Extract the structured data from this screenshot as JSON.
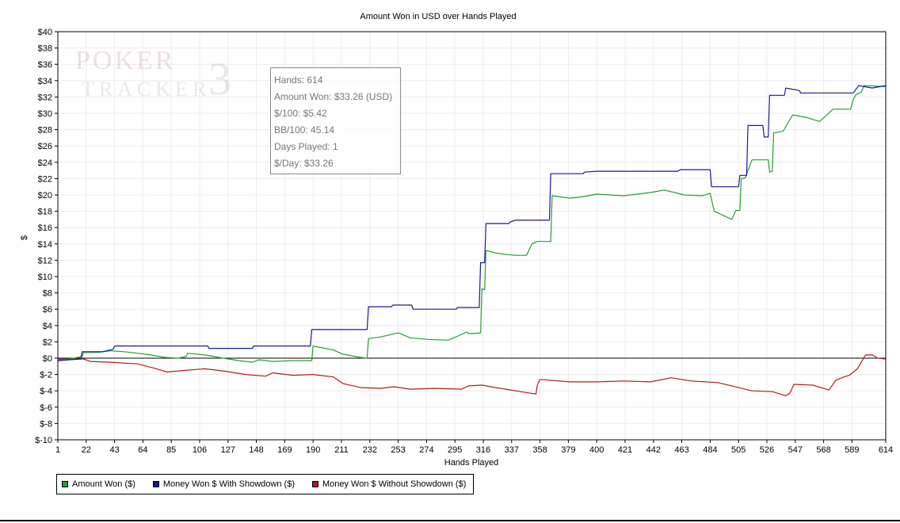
{
  "watermark": {
    "line1": "POKER",
    "line2": "TRACKER",
    "mark": "3"
  },
  "tooltip": [
    "Hands: 614",
    "Amount Won: $33.26 (USD)",
    "$/100: $5.42",
    "BB/100: 45.14",
    "Days Played: 1",
    "$/Day: $33.26"
  ],
  "chart_data": {
    "type": "line",
    "title": "Amount Won in USD over Hands Played",
    "xlabel": "Hands Played",
    "ylabel": "$",
    "xlim": [
      1,
      614
    ],
    "ylim": [
      -10,
      40
    ],
    "x_ticks": [
      1,
      22,
      43,
      64,
      85,
      106,
      127,
      148,
      169,
      190,
      211,
      232,
      253,
      274,
      295,
      316,
      337,
      358,
      379,
      400,
      421,
      442,
      463,
      484,
      505,
      526,
      547,
      568,
      589,
      614
    ],
    "y_ticks": [
      "$-10",
      "$-8",
      "$-6",
      "$-4",
      "$-2",
      "$0",
      "$2",
      "$4",
      "$6",
      "$8",
      "$10",
      "$12",
      "$14",
      "$16",
      "$18",
      "$20",
      "$22",
      "$24",
      "$26",
      "$28",
      "$30",
      "$32",
      "$34",
      "$36",
      "$38",
      "$40"
    ],
    "grid": true,
    "legend_position": "bottom-left",
    "series": [
      {
        "name": "Amount Won ($)",
        "color": "#22a032",
        "points": [
          [
            1,
            -0.2
          ],
          [
            10,
            -0.1
          ],
          [
            19,
            0.2
          ],
          [
            20,
            0.7
          ],
          [
            30,
            0.7
          ],
          [
            40,
            0.9
          ],
          [
            50,
            0.8
          ],
          [
            60,
            0.6
          ],
          [
            70,
            0.4
          ],
          [
            80,
            0.1
          ],
          [
            90,
            0.0
          ],
          [
            96,
            0.2
          ],
          [
            97,
            0.6
          ],
          [
            110,
            0.4
          ],
          [
            120,
            0.1
          ],
          [
            135,
            -0.3
          ],
          [
            145,
            -0.5
          ],
          [
            150,
            -0.2
          ],
          [
            160,
            -0.4
          ],
          [
            175,
            -0.3
          ],
          [
            189,
            -0.3
          ],
          [
            190,
            1.5
          ],
          [
            205,
            1.0
          ],
          [
            212,
            0.5
          ],
          [
            225,
            0.1
          ],
          [
            230,
            0.0
          ],
          [
            231,
            2.4
          ],
          [
            240,
            2.6
          ],
          [
            253,
            3.1
          ],
          [
            262,
            2.5
          ],
          [
            275,
            2.3
          ],
          [
            290,
            2.2
          ],
          [
            304,
            3.2
          ],
          [
            305,
            3.0
          ],
          [
            314,
            3.1
          ],
          [
            315,
            8.5
          ],
          [
            317,
            8.4
          ],
          [
            318,
            13.2
          ],
          [
            325,
            12.9
          ],
          [
            333,
            12.7
          ],
          [
            340,
            12.6
          ],
          [
            348,
            12.6
          ],
          [
            352,
            14.0
          ],
          [
            356,
            14.3
          ],
          [
            366,
            14.3
          ],
          [
            367,
            19.9
          ],
          [
            380,
            19.6
          ],
          [
            390,
            19.8
          ],
          [
            400,
            20.1
          ],
          [
            420,
            19.9
          ],
          [
            440,
            20.3
          ],
          [
            450,
            20.6
          ],
          [
            465,
            20.0
          ],
          [
            478,
            19.9
          ],
          [
            484,
            20.2
          ],
          [
            487,
            18.0
          ],
          [
            500,
            17.0
          ],
          [
            503,
            18.1
          ],
          [
            506,
            18.1
          ],
          [
            507,
            22.0
          ],
          [
            510,
            22.1
          ],
          [
            515,
            24.3
          ],
          [
            527,
            24.3
          ],
          [
            528,
            22.8
          ],
          [
            530,
            22.9
          ],
          [
            531,
            27.6
          ],
          [
            538,
            27.8
          ],
          [
            545,
            29.8
          ],
          [
            555,
            29.5
          ],
          [
            565,
            29.0
          ],
          [
            575,
            30.5
          ],
          [
            588,
            30.5
          ],
          [
            590,
            31.7
          ],
          [
            592,
            32.3
          ],
          [
            596,
            32.6
          ],
          [
            598,
            33.4
          ],
          [
            614,
            33.26
          ]
        ]
      },
      {
        "name": "Money Won $ With Showdown ($)",
        "color": "#1a1a96",
        "points": [
          [
            1,
            -0.3
          ],
          [
            18,
            -0.1
          ],
          [
            19,
            0.8
          ],
          [
            34,
            0.8
          ],
          [
            42,
            1.1
          ],
          [
            43,
            1.5
          ],
          [
            70,
            1.5
          ],
          [
            90,
            1.5
          ],
          [
            112,
            1.5
          ],
          [
            113,
            1.2
          ],
          [
            145,
            1.2
          ],
          [
            146,
            1.5
          ],
          [
            188,
            1.5
          ],
          [
            189,
            3.5
          ],
          [
            205,
            3.5
          ],
          [
            206,
            3.5
          ],
          [
            230,
            3.5
          ],
          [
            231,
            6.3
          ],
          [
            248,
            6.3
          ],
          [
            249,
            6.5
          ],
          [
            263,
            6.5
          ],
          [
            264,
            6.0
          ],
          [
            296,
            6.0
          ],
          [
            297,
            6.2
          ],
          [
            313,
            6.2
          ],
          [
            314,
            11.7
          ],
          [
            317,
            11.7
          ],
          [
            318,
            16.5
          ],
          [
            335,
            16.5
          ],
          [
            336,
            16.7
          ],
          [
            340,
            16.9
          ],
          [
            365,
            16.9
          ],
          [
            366,
            22.6
          ],
          [
            390,
            22.6
          ],
          [
            391,
            22.8
          ],
          [
            400,
            22.9
          ],
          [
            460,
            22.9
          ],
          [
            462,
            23.1
          ],
          [
            484,
            23.1
          ],
          [
            485,
            21.0
          ],
          [
            505,
            21.0
          ],
          [
            506,
            22.4
          ],
          [
            511,
            22.4
          ],
          [
            512,
            28.5
          ],
          [
            523,
            28.5
          ],
          [
            524,
            27.1
          ],
          [
            527,
            27.1
          ],
          [
            528,
            32.2
          ],
          [
            539,
            32.2
          ],
          [
            540,
            33.1
          ],
          [
            550,
            32.8
          ],
          [
            551,
            32.5
          ],
          [
            590,
            32.5
          ],
          [
            594,
            33.4
          ],
          [
            604,
            33.1
          ],
          [
            614,
            33.4
          ]
        ]
      },
      {
        "name": "Money Won $ Without Showdown ($)",
        "color": "#b01e1e",
        "points": [
          [
            1,
            -0.1
          ],
          [
            20,
            -0.1
          ],
          [
            25,
            -0.4
          ],
          [
            40,
            -0.5
          ],
          [
            60,
            -0.7
          ],
          [
            72,
            -1.2
          ],
          [
            82,
            -1.7
          ],
          [
            95,
            -1.5
          ],
          [
            110,
            -1.3
          ],
          [
            125,
            -1.6
          ],
          [
            140,
            -2.0
          ],
          [
            155,
            -2.2
          ],
          [
            160,
            -1.8
          ],
          [
            175,
            -2.1
          ],
          [
            190,
            -2.0
          ],
          [
            205,
            -2.3
          ],
          [
            212,
            -3.1
          ],
          [
            225,
            -3.6
          ],
          [
            240,
            -3.7
          ],
          [
            250,
            -3.5
          ],
          [
            262,
            -3.8
          ],
          [
            280,
            -3.7
          ],
          [
            300,
            -3.8
          ],
          [
            305,
            -3.4
          ],
          [
            315,
            -3.3
          ],
          [
            325,
            -3.6
          ],
          [
            340,
            -4.0
          ],
          [
            355,
            -4.4
          ],
          [
            356,
            -3.3
          ],
          [
            358,
            -2.6
          ],
          [
            380,
            -2.9
          ],
          [
            400,
            -2.9
          ],
          [
            420,
            -2.8
          ],
          [
            440,
            -2.9
          ],
          [
            455,
            -2.4
          ],
          [
            470,
            -2.8
          ],
          [
            490,
            -3.0
          ],
          [
            505,
            -3.6
          ],
          [
            515,
            -4.0
          ],
          [
            530,
            -4.1
          ],
          [
            540,
            -4.6
          ],
          [
            543,
            -4.3
          ],
          [
            546,
            -3.2
          ],
          [
            560,
            -3.3
          ],
          [
            572,
            -3.9
          ],
          [
            577,
            -2.7
          ],
          [
            583,
            -2.3
          ],
          [
            587,
            -2.1
          ],
          [
            590,
            -1.7
          ],
          [
            593,
            -1.3
          ],
          [
            599,
            0.4
          ],
          [
            604,
            0.4
          ],
          [
            608,
            0.0
          ],
          [
            614,
            -0.1
          ]
        ]
      }
    ]
  }
}
